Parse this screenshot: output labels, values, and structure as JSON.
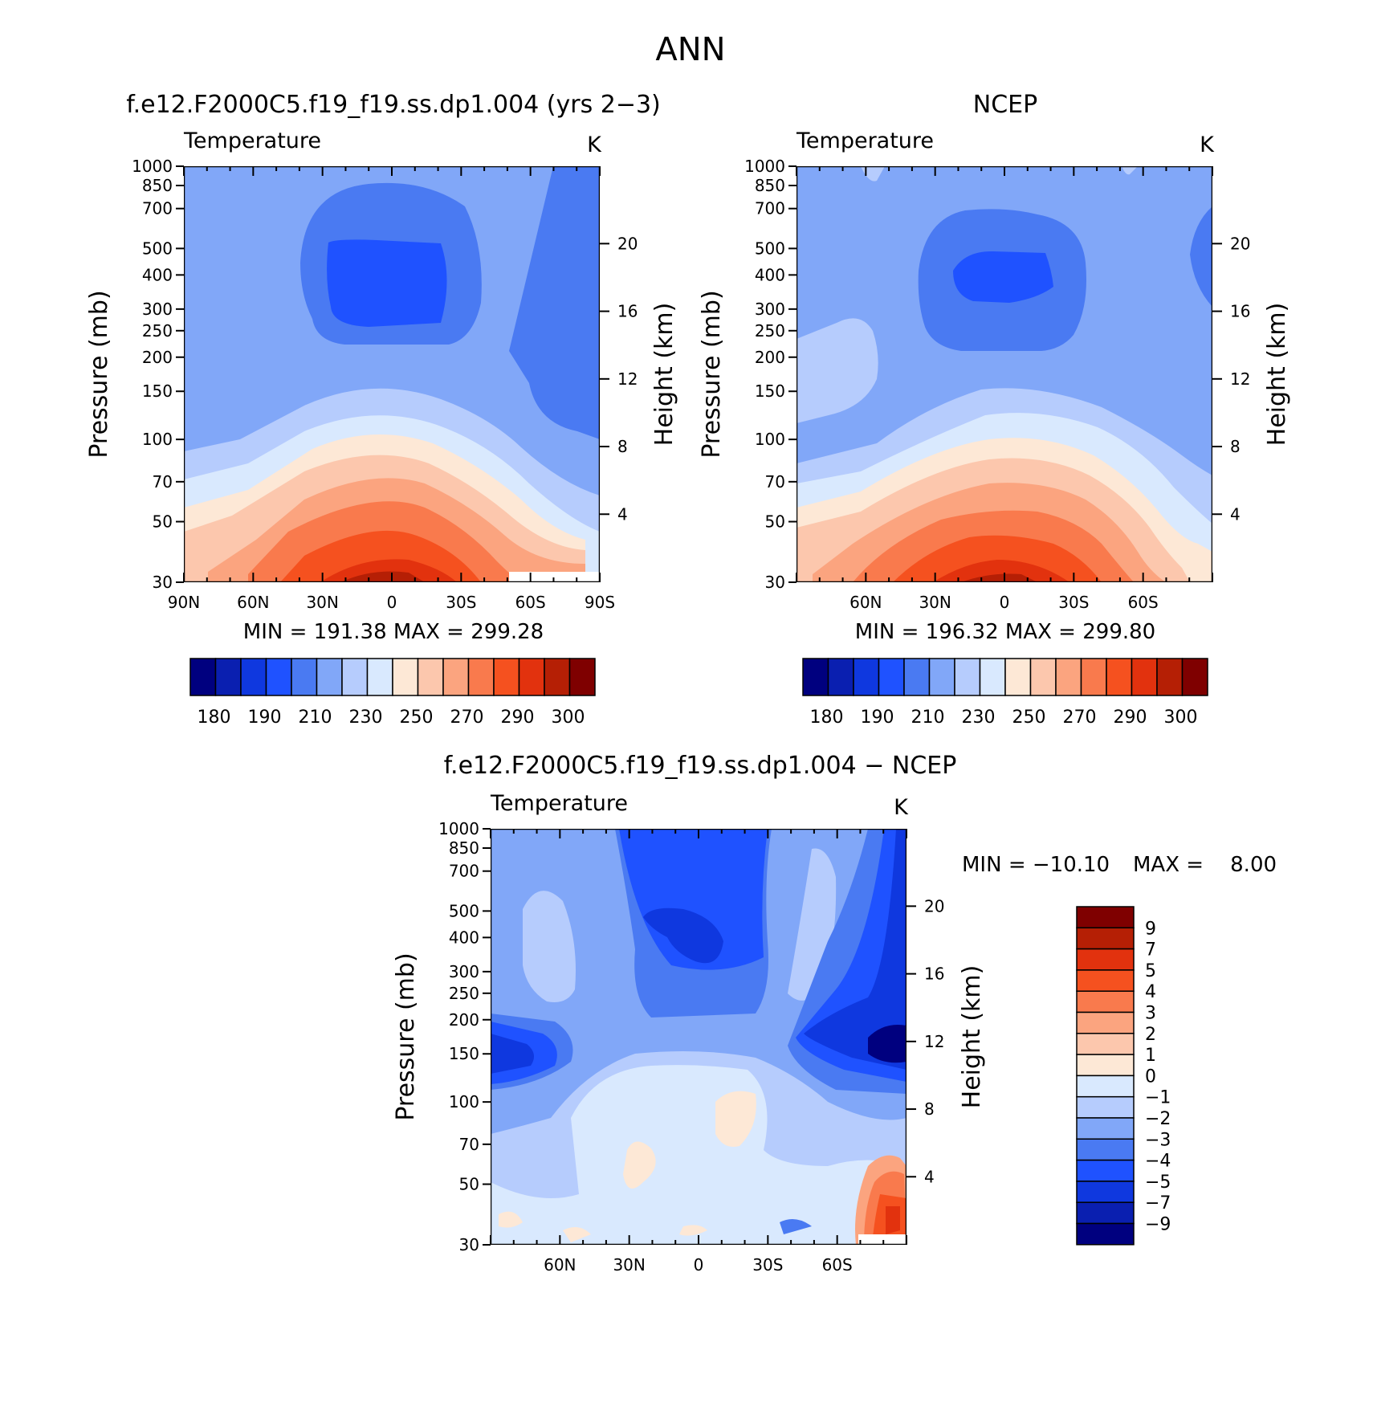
{
  "figure": {
    "title": "ANN"
  },
  "chart_data": [
    {
      "type": "heatmap",
      "title": "f.e12.F2000C5.f19_f19.ss.dp1.004 (yrs 2−3)",
      "subtitle_left": "Temperature",
      "subtitle_right": "K",
      "ylabel": "Pressure (mb)",
      "ylabel_right": "Height (km)",
      "x_ticks": [
        "90N",
        "60N",
        "30N",
        "0",
        "30S",
        "60S",
        "90S"
      ],
      "y_ticks": [
        "30",
        "50",
        "70",
        "100",
        "150",
        "200",
        "250",
        "300",
        "400",
        "500",
        "700",
        "850",
        "1000"
      ],
      "height_ticks": [
        "20",
        "16",
        "12",
        "8",
        "4"
      ],
      "stats": "MIN = 191.38   MAX = 299.28",
      "levels": [
        "180",
        "190",
        "210",
        "230",
        "250",
        "270",
        "290",
        "300"
      ]
    },
    {
      "type": "heatmap",
      "title": "NCEP",
      "subtitle_left": "Temperature",
      "subtitle_right": "K",
      "ylabel": "Pressure (mb)",
      "ylabel_right": "Height (km)",
      "x_ticks": [
        "60N",
        "30N",
        "0",
        "30S",
        "60S"
      ],
      "y_ticks": [
        "30",
        "50",
        "70",
        "100",
        "150",
        "200",
        "250",
        "300",
        "400",
        "500",
        "700",
        "850",
        "1000"
      ],
      "height_ticks": [
        "20",
        "16",
        "12",
        "8",
        "4"
      ],
      "stats": "MIN = 196.32   MAX = 299.80",
      "levels": [
        "180",
        "190",
        "210",
        "230",
        "250",
        "270",
        "290",
        "300"
      ]
    },
    {
      "type": "heatmap",
      "title": "f.e12.F2000C5.f19_f19.ss.dp1.004 − NCEP",
      "subtitle_left": "Temperature",
      "subtitle_right": "K",
      "ylabel": "Pressure (mb)",
      "ylabel_right": "Height (km)",
      "x_ticks": [
        "60N",
        "30N",
        "0",
        "30S",
        "60S"
      ],
      "y_ticks": [
        "30",
        "50",
        "70",
        "100",
        "150",
        "200",
        "250",
        "300",
        "400",
        "500",
        "700",
        "850",
        "1000"
      ],
      "height_ticks": [
        "20",
        "16",
        "12",
        "8",
        "4"
      ],
      "stats_min": "MIN = −10.10",
      "stats_max": "MAX =    8.00",
      "levels": [
        "9",
        "7",
        "5",
        "4",
        "3",
        "2",
        "1",
        "0",
        "−1",
        "−2",
        "−3",
        "−4",
        "−5",
        "−7",
        "−9"
      ]
    }
  ],
  "palette": [
    "#00007f",
    "#0a1fb0",
    "#0f38df",
    "#1f52ff",
    "#4a7af2",
    "#81a7f8",
    "#b6ccfd",
    "#d9e9fe",
    "#fde8d6",
    "#fcc7ad",
    "#fba47f",
    "#f97a4d",
    "#f5511f",
    "#e2320e",
    "#b51f05",
    "#7f0000"
  ]
}
